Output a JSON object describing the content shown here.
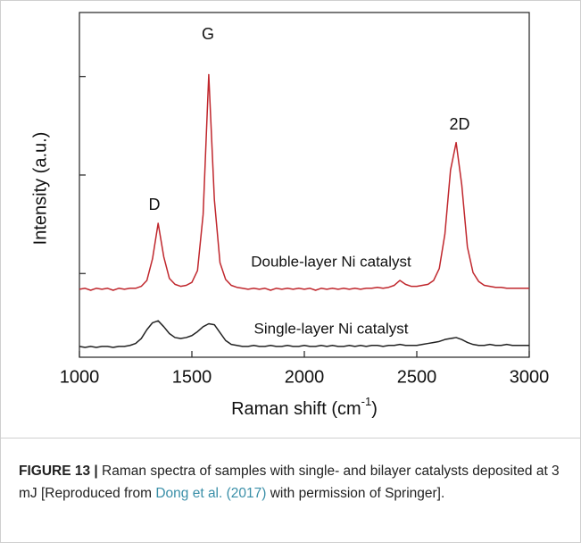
{
  "chart_data": {
    "type": "line",
    "xlabel": {
      "text": "Raman shift (cm",
      "sup": "-1",
      "end": ")"
    },
    "ylabel": "Intensity (a.u.)",
    "annotations": [
      "D",
      "G",
      "2D",
      "Double-layer Ni catalyst",
      "Single-layer Ni catalyst"
    ],
    "x": [
      1000,
      1025,
      1050,
      1075,
      1100,
      1125,
      1150,
      1175,
      1200,
      1225,
      1250,
      1275,
      1300,
      1325,
      1350,
      1375,
      1400,
      1425,
      1450,
      1475,
      1500,
      1525,
      1550,
      1575,
      1600,
      1625,
      1650,
      1675,
      1700,
      1725,
      1750,
      1775,
      1800,
      1825,
      1850,
      1875,
      1900,
      1925,
      1950,
      1975,
      2000,
      2025,
      2050,
      2075,
      2100,
      2125,
      2150,
      2175,
      2200,
      2225,
      2250,
      2275,
      2300,
      2325,
      2350,
      2375,
      2400,
      2425,
      2450,
      2475,
      2500,
      2525,
      2550,
      2575,
      2600,
      2625,
      2650,
      2675,
      2700,
      2725,
      2750,
      2775,
      2800,
      2825,
      2850,
      2875,
      2900,
      2925,
      2950,
      2975,
      3000
    ],
    "series": [
      {
        "color": "#c0272d",
        "values": [
          0.69,
          0.7,
          0.68,
          0.7,
          0.69,
          0.7,
          0.68,
          0.7,
          0.69,
          0.7,
          0.7,
          0.72,
          0.78,
          1.0,
          1.36,
          1.02,
          0.8,
          0.74,
          0.72,
          0.73,
          0.76,
          0.88,
          1.45,
          2.87,
          1.6,
          0.96,
          0.79,
          0.73,
          0.71,
          0.7,
          0.69,
          0.7,
          0.69,
          0.7,
          0.68,
          0.7,
          0.69,
          0.7,
          0.69,
          0.7,
          0.69,
          0.7,
          0.68,
          0.7,
          0.69,
          0.7,
          0.69,
          0.7,
          0.69,
          0.7,
          0.69,
          0.7,
          0.7,
          0.71,
          0.7,
          0.71,
          0.73,
          0.78,
          0.74,
          0.72,
          0.72,
          0.73,
          0.74,
          0.78,
          0.9,
          1.25,
          1.9,
          2.18,
          1.75,
          1.12,
          0.86,
          0.77,
          0.73,
          0.72,
          0.71,
          0.71,
          0.7,
          0.7,
          0.7,
          0.7,
          0.7
        ]
      },
      {
        "color": "#222222",
        "values": [
          0.11,
          0.1,
          0.11,
          0.1,
          0.11,
          0.11,
          0.1,
          0.11,
          0.11,
          0.12,
          0.14,
          0.19,
          0.28,
          0.35,
          0.37,
          0.31,
          0.24,
          0.2,
          0.19,
          0.2,
          0.22,
          0.26,
          0.31,
          0.34,
          0.33,
          0.25,
          0.17,
          0.13,
          0.12,
          0.11,
          0.11,
          0.12,
          0.11,
          0.11,
          0.12,
          0.11,
          0.11,
          0.12,
          0.11,
          0.11,
          0.12,
          0.11,
          0.11,
          0.12,
          0.11,
          0.12,
          0.11,
          0.11,
          0.12,
          0.11,
          0.12,
          0.11,
          0.12,
          0.12,
          0.11,
          0.12,
          0.12,
          0.13,
          0.12,
          0.12,
          0.12,
          0.13,
          0.14,
          0.15,
          0.16,
          0.18,
          0.19,
          0.2,
          0.18,
          0.15,
          0.13,
          0.12,
          0.12,
          0.13,
          0.12,
          0.12,
          0.13,
          0.12,
          0.12,
          0.12,
          0.12
        ]
      }
    ],
    "xlim": [
      1000,
      3000
    ],
    "xticks": [
      1000,
      1500,
      2000,
      2500,
      3000
    ],
    "ylim": [
      0,
      3.5
    ],
    "yticks": [
      0.85,
      1.85,
      2.85
    ],
    "ytick_labels": false
  },
  "caption": {
    "label": "FIGURE 13 |",
    "text_before": " Raman spectra of samples with single- and bilayer catalysts deposited at 3 mJ [Reproduced from ",
    "link": "Dong et al. (2017)",
    "text_after": " with permission of Springer]."
  }
}
